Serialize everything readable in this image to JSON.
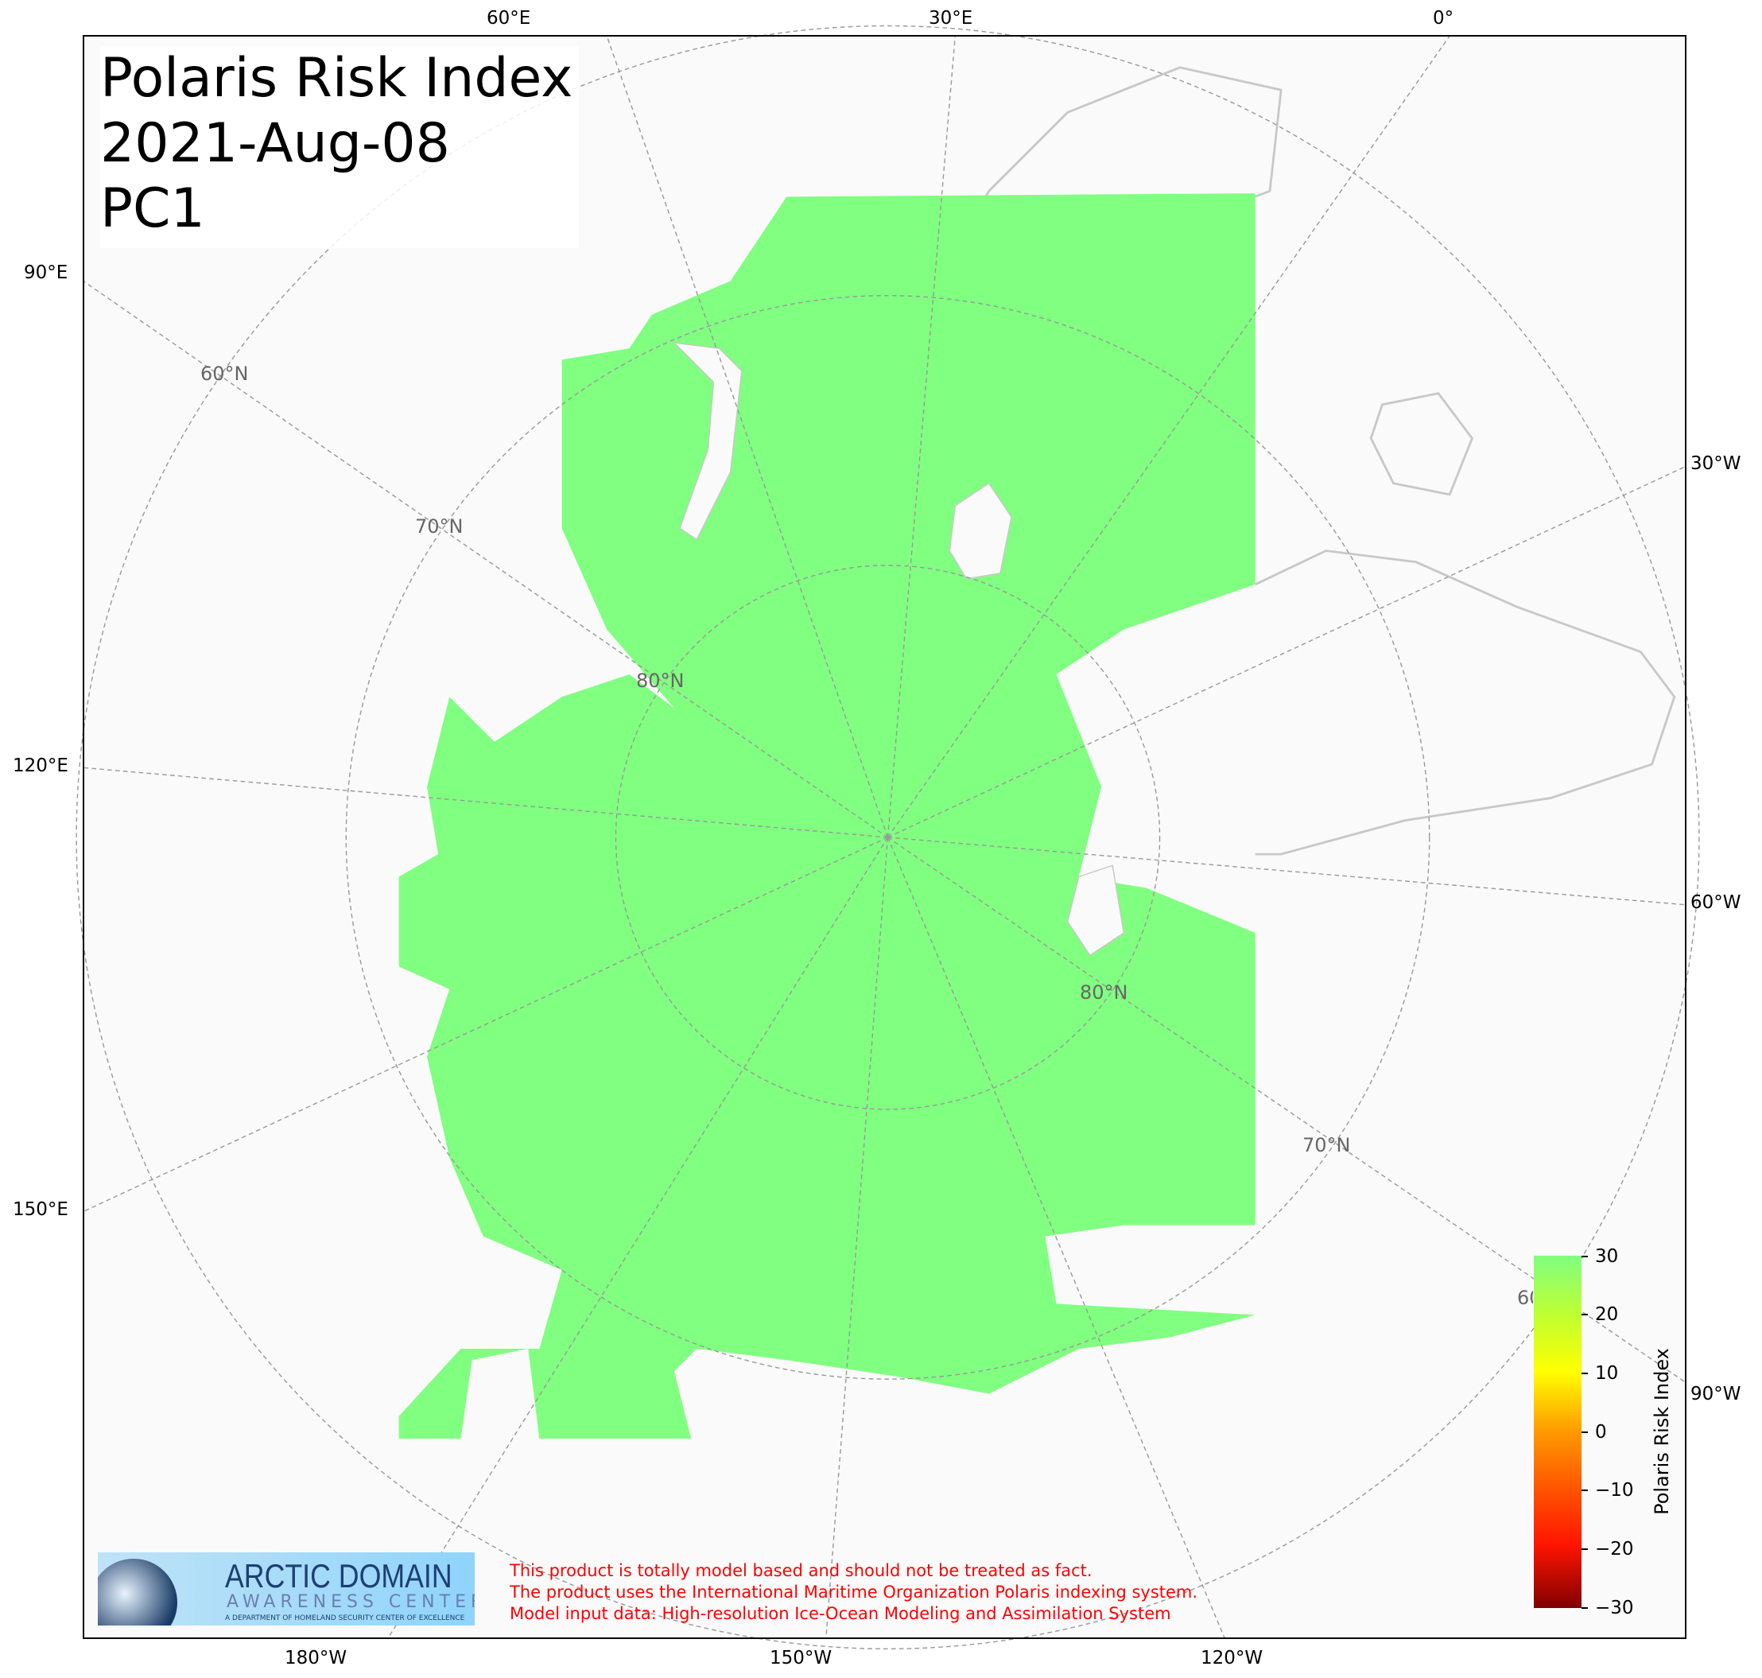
{
  "title": {
    "line1": "Polaris Risk Index",
    "line2": "2021-Aug-08",
    "line3": "PC1"
  },
  "top_lon_labels": [
    "60°E",
    "30°E",
    "0°"
  ],
  "left_lon_labels": [
    "90°E",
    "120°E",
    "150°E"
  ],
  "right_lon_labels": [
    "30°W",
    "60°W",
    "90°W"
  ],
  "bottom_lon_labels": [
    "180°W",
    "150°W",
    "120°W"
  ],
  "lat_labels": [
    "60°N",
    "70°N",
    "80°N",
    "80°N",
    "70°N",
    "60°N"
  ],
  "colorbar": {
    "label": "Polaris Risk Index",
    "ticks": [
      "30",
      "20",
      "10",
      "0",
      "−10",
      "−20",
      "−30"
    ],
    "range": [
      -30,
      30
    ],
    "colors": [
      "#800000",
      "#ff1500",
      "#ff9900",
      "#ffff00",
      "#80ff80"
    ]
  },
  "map": {
    "projection": "north polar stereographic",
    "ocean_value_color": "#80ff80",
    "land_color": "#fafafa",
    "coast_color": "#c8c8c8"
  },
  "logo": {
    "line1": "ARCTIC DOMAIN",
    "line2": "AWARENESS CENTER",
    "line3": "A DEPARTMENT OF HOMELAND SECURITY CENTER OF EXCELLENCE"
  },
  "disclaimer": [
    "This product is totally model based and should not be treated as fact.",
    "The product uses the International Maritime Organization Polaris indexing system.",
    "Model input data: High-resolution Ice-Ocean Modeling and Assimilation System"
  ]
}
